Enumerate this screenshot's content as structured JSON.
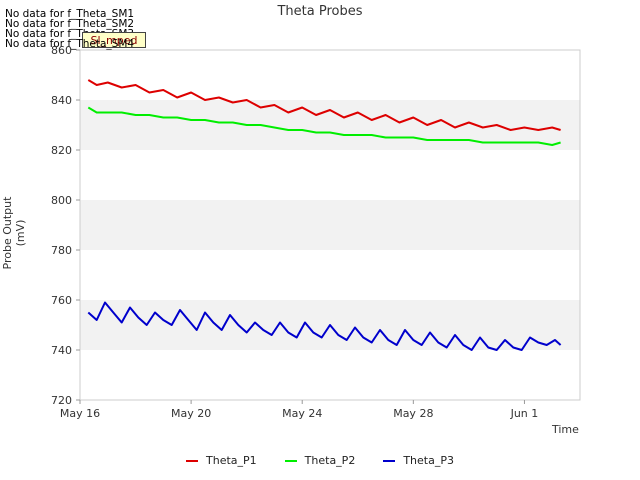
{
  "no_data_lines": [
    "No data for f_Theta_SM1",
    "No data for f_Theta_SM2",
    "No data for f_Theta_SM3",
    "No data for f_Theta_SM4"
  ],
  "badge_label": "Sl_mped",
  "chart_data": {
    "type": "line",
    "title": "Theta Probes",
    "xlabel": "Time",
    "ylabel": "Probe Output (mV)",
    "ylim": [
      720,
      860
    ],
    "xlim_days": [
      16.0,
      34.0
    ],
    "x_ticks": [
      {
        "label": "May 16",
        "day": 16
      },
      {
        "label": "May 20",
        "day": 20
      },
      {
        "label": "May 24",
        "day": 24
      },
      {
        "label": "May 28",
        "day": 28
      },
      {
        "label": "Jun 1",
        "day": 32
      }
    ],
    "y_ticks": [
      720,
      740,
      760,
      780,
      800,
      820,
      840,
      860
    ],
    "grid": "alternating horizontal bands",
    "legend_position": "bottom",
    "series": [
      {
        "name": "Theta_P1",
        "color": "#dd0000",
        "x": [
          16.3,
          16.6,
          17.0,
          17.5,
          18.0,
          18.5,
          19.0,
          19.5,
          20.0,
          20.5,
          21.0,
          21.5,
          22.0,
          22.5,
          23.0,
          23.5,
          24.0,
          24.5,
          25.0,
          25.5,
          26.0,
          26.5,
          27.0,
          27.5,
          28.0,
          28.5,
          29.0,
          29.5,
          30.0,
          30.5,
          31.0,
          31.5,
          32.0,
          32.5,
          33.0,
          33.3
        ],
        "y": [
          848,
          846,
          847,
          845,
          846,
          843,
          844,
          841,
          843,
          840,
          841,
          839,
          840,
          837,
          838,
          835,
          837,
          834,
          836,
          833,
          835,
          832,
          834,
          831,
          833,
          830,
          832,
          829,
          831,
          829,
          830,
          828,
          829,
          828,
          829,
          828
        ]
      },
      {
        "name": "Theta_P2",
        "color": "#00ee00",
        "x": [
          16.3,
          16.6,
          17.0,
          17.5,
          18.0,
          18.5,
          19.0,
          19.5,
          20.0,
          20.5,
          21.0,
          21.5,
          22.0,
          22.5,
          23.0,
          23.5,
          24.0,
          24.5,
          25.0,
          25.5,
          26.0,
          26.5,
          27.0,
          27.5,
          28.0,
          28.5,
          29.0,
          29.5,
          30.0,
          30.5,
          31.0,
          31.5,
          32.0,
          32.5,
          33.0,
          33.3
        ],
        "y": [
          837,
          835,
          835,
          835,
          834,
          834,
          833,
          833,
          832,
          832,
          831,
          831,
          830,
          830,
          829,
          828,
          828,
          827,
          827,
          826,
          826,
          826,
          825,
          825,
          825,
          824,
          824,
          824,
          824,
          823,
          823,
          823,
          823,
          823,
          822,
          823
        ]
      },
      {
        "name": "Theta_P3",
        "color": "#0000cc",
        "x": [
          16.3,
          16.6,
          16.9,
          17.2,
          17.5,
          17.8,
          18.1,
          18.4,
          18.7,
          19.0,
          19.3,
          19.6,
          19.9,
          20.2,
          20.5,
          20.8,
          21.1,
          21.4,
          21.7,
          22.0,
          22.3,
          22.6,
          22.9,
          23.2,
          23.5,
          23.8,
          24.1,
          24.4,
          24.7,
          25.0,
          25.3,
          25.6,
          25.9,
          26.2,
          26.5,
          26.8,
          27.1,
          27.4,
          27.7,
          28.0,
          28.3,
          28.6,
          28.9,
          29.2,
          29.5,
          29.8,
          30.1,
          30.4,
          30.7,
          31.0,
          31.3,
          31.6,
          31.9,
          32.2,
          32.5,
          32.8,
          33.1,
          33.3
        ],
        "y": [
          755,
          752,
          759,
          755,
          751,
          757,
          753,
          750,
          755,
          752,
          750,
          756,
          752,
          748,
          755,
          751,
          748,
          754,
          750,
          747,
          751,
          748,
          746,
          751,
          747,
          745,
          751,
          747,
          745,
          750,
          746,
          744,
          749,
          745,
          743,
          748,
          744,
          742,
          748,
          744,
          742,
          747,
          743,
          741,
          746,
          742,
          740,
          745,
          741,
          740,
          744,
          741,
          740,
          745,
          743,
          742,
          744,
          742
        ]
      }
    ]
  }
}
